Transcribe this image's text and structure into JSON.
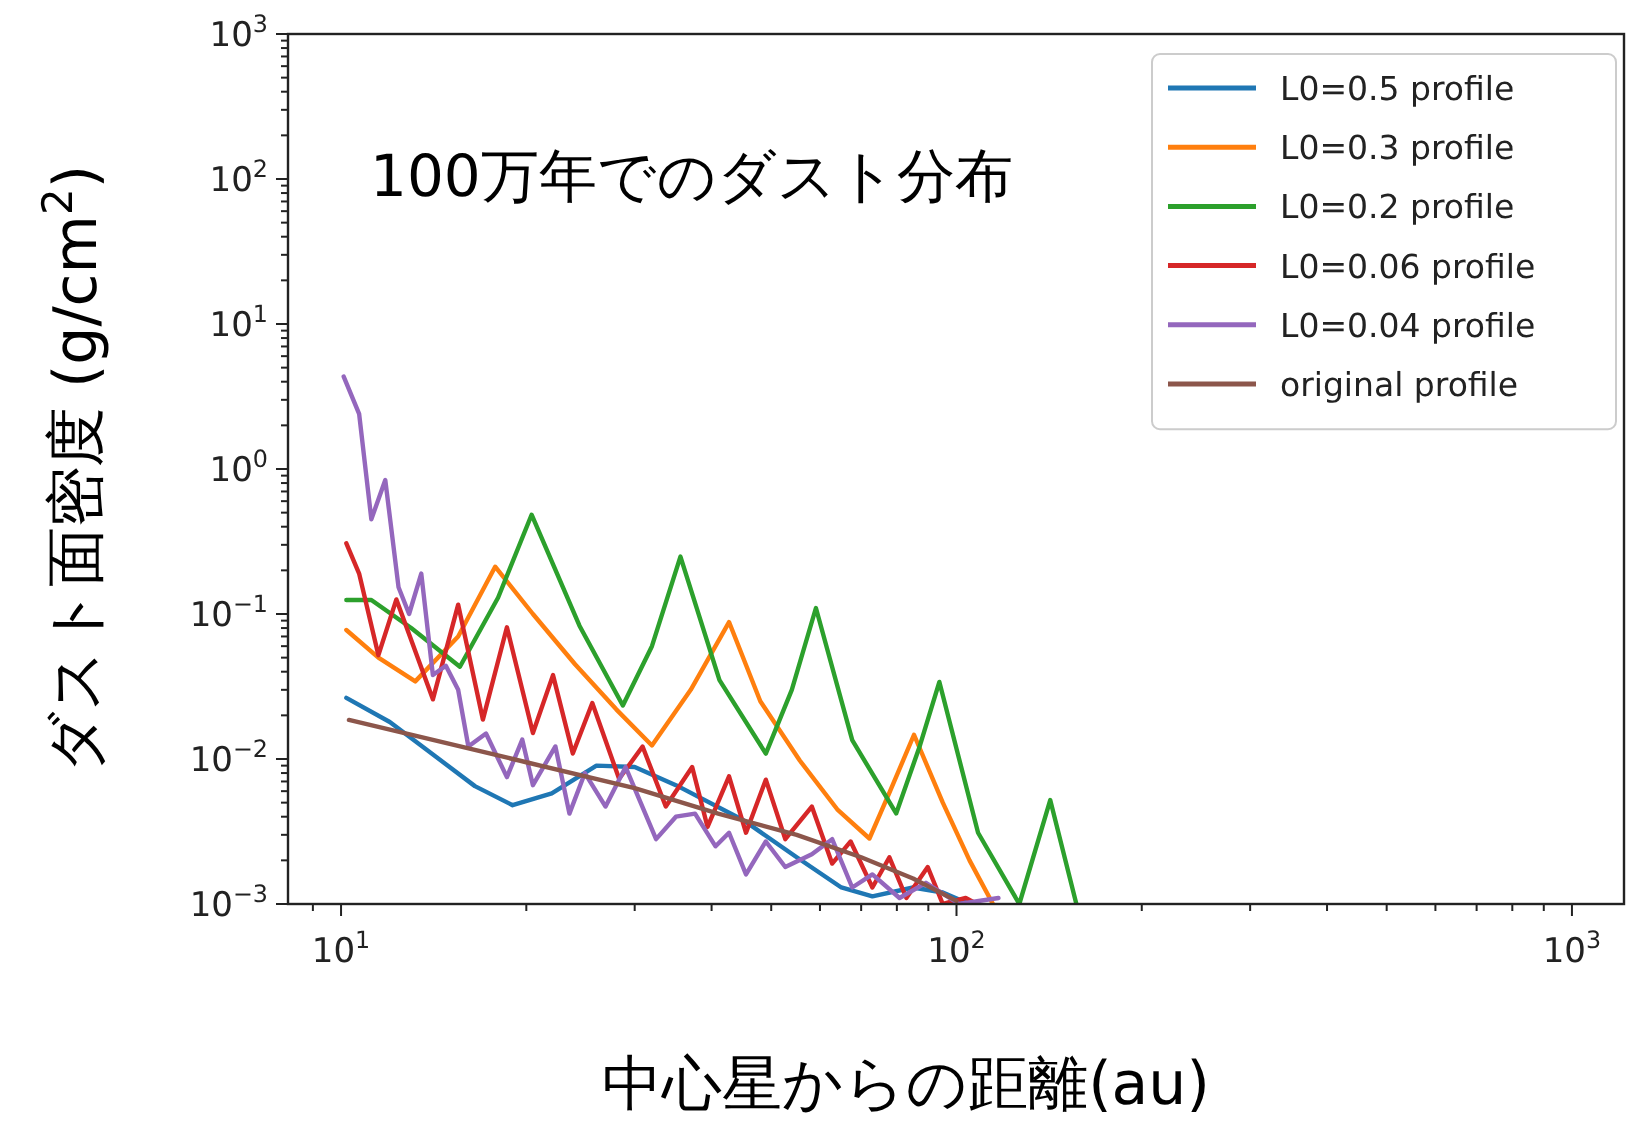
{
  "chart_data": {
    "type": "line",
    "title": "100万年でのダスト分布",
    "xlabel": "中心星からの距離(au)",
    "ylabel": "ダスト面密度 (g/cm$^{2}$)",
    "log": "xy",
    "legend": "top right",
    "xlim": [
      8.2,
      1215
    ],
    "ylim": [
      0.001,
      1000
    ],
    "xticks": [
      {
        "value": 9,
        "label": null
      },
      {
        "value": 10,
        "label": "10$^{1}$"
      },
      {
        "value": 20,
        "label": null
      },
      {
        "value": 30,
        "label": null
      },
      {
        "value": 40,
        "label": null
      },
      {
        "value": 50,
        "label": null
      },
      {
        "value": 60,
        "label": null
      },
      {
        "value": 70,
        "label": null
      },
      {
        "value": 80,
        "label": null
      },
      {
        "value": 90,
        "label": null
      },
      {
        "value": 100,
        "label": "10$^{2}$"
      },
      {
        "value": 200,
        "label": null
      },
      {
        "value": 300,
        "label": null
      },
      {
        "value": 400,
        "label": null
      },
      {
        "value": 500,
        "label": null
      },
      {
        "value": 600,
        "label": null
      },
      {
        "value": 700,
        "label": null
      },
      {
        "value": 800,
        "label": null
      },
      {
        "value": 900,
        "label": null
      },
      {
        "value": 1000,
        "label": "10$^{3}$"
      }
    ],
    "yticks": [
      {
        "value": 0.001,
        "label": "10$^{−3}$"
      },
      {
        "value": 0.002,
        "label": null
      },
      {
        "value": 0.003,
        "label": null
      },
      {
        "value": 0.004,
        "label": null
      },
      {
        "value": 0.005,
        "label": null
      },
      {
        "value": 0.006,
        "label": null
      },
      {
        "value": 0.007,
        "label": null
      },
      {
        "value": 0.008,
        "label": null
      },
      {
        "value": 0.009,
        "label": null
      },
      {
        "value": 0.01,
        "label": "10$^{−2}$"
      },
      {
        "value": 0.02,
        "label": null
      },
      {
        "value": 0.03,
        "label": null
      },
      {
        "value": 0.04,
        "label": null
      },
      {
        "value": 0.05,
        "label": null
      },
      {
        "value": 0.06,
        "label": null
      },
      {
        "value": 0.07,
        "label": null
      },
      {
        "value": 0.08,
        "label": null
      },
      {
        "value": 0.09,
        "label": null
      },
      {
        "value": 0.1,
        "label": "10$^{−1}$"
      },
      {
        "value": 0.2,
        "label": null
      },
      {
        "value": 0.3,
        "label": null
      },
      {
        "value": 0.4,
        "label": null
      },
      {
        "value": 0.5,
        "label": null
      },
      {
        "value": 0.6,
        "label": null
      },
      {
        "value": 0.7,
        "label": null
      },
      {
        "value": 0.8,
        "label": null
      },
      {
        "value": 0.9,
        "label": null
      },
      {
        "value": 1,
        "label": "10$^{0}$"
      },
      {
        "value": 2,
        "label": null
      },
      {
        "value": 3,
        "label": null
      },
      {
        "value": 4,
        "label": null
      },
      {
        "value": 5,
        "label": null
      },
      {
        "value": 6,
        "label": null
      },
      {
        "value": 7,
        "label": null
      },
      {
        "value": 8,
        "label": null
      },
      {
        "value": 9,
        "label": null
      },
      {
        "value": 10,
        "label": "10$^{1}$"
      },
      {
        "value": 20,
        "label": null
      },
      {
        "value": 30,
        "label": null
      },
      {
        "value": 40,
        "label": null
      },
      {
        "value": 50,
        "label": null
      },
      {
        "value": 60,
        "label": null
      },
      {
        "value": 70,
        "label": null
      },
      {
        "value": 80,
        "label": null
      },
      {
        "value": 90,
        "label": null
      },
      {
        "value": 100,
        "label": "10$^{2}$"
      },
      {
        "value": 200,
        "label": null
      },
      {
        "value": 300,
        "label": null
      },
      {
        "value": 400,
        "label": null
      },
      {
        "value": 500,
        "label": null
      },
      {
        "value": 600,
        "label": null
      },
      {
        "value": 700,
        "label": null
      },
      {
        "value": 800,
        "label": null
      },
      {
        "value": 900,
        "label": null
      },
      {
        "value": 1000,
        "label": "10$^{3}$"
      }
    ],
    "series": [
      {
        "name": "L0=0.5 profile",
        "color": "#1f77b4",
        "x": [
          10.2,
          12,
          14,
          16.5,
          19,
          22,
          26,
          30,
          35,
          45,
          55,
          65,
          73,
          85,
          95,
          105
        ],
        "values": [
          0.0264,
          0.018,
          0.011,
          0.0065,
          0.0048,
          0.0058,
          0.009,
          0.0088,
          0.0066,
          0.0038,
          0.0021,
          0.0013,
          0.00113,
          0.0013,
          0.0012,
          0.001
        ]
      },
      {
        "name": "L0=0.3 profile",
        "color": "#ff7f0e",
        "x": [
          10.2,
          11.5,
          13.2,
          15.5,
          17.8,
          20.5,
          24,
          28,
          32,
          37,
          42.7,
          48,
          55.6,
          64,
          72.2,
          78,
          85.3,
          95,
          105,
          114.6
        ],
        "values": [
          0.0776,
          0.05,
          0.0343,
          0.07,
          0.212,
          0.1,
          0.045,
          0.022,
          0.0124,
          0.03,
          0.088,
          0.025,
          0.0098,
          0.0045,
          0.00283,
          0.006,
          0.0147,
          0.005,
          0.002,
          0.001
        ]
      },
      {
        "name": "L0=0.2 profile",
        "color": "#2ca02c",
        "x": [
          10.2,
          11.2,
          13,
          15.6,
          18,
          20.4,
          24.4,
          28.7,
          32,
          35.6,
          41.2,
          49,
          54,
          59.1,
          67.7,
          79.8,
          87,
          93.8,
          108.4,
          126.5,
          142,
          156.6
        ],
        "values": [
          0.125,
          0.125,
          0.08,
          0.0433,
          0.13,
          0.484,
          0.083,
          0.0234,
          0.06,
          0.249,
          0.035,
          0.0109,
          0.03,
          0.11,
          0.0135,
          0.00421,
          0.012,
          0.034,
          0.0031,
          0.001,
          0.00521,
          0.001
        ]
      },
      {
        "name": "L0=0.06 profile",
        "color": "#d62728",
        "x": [
          10.2,
          10.7,
          11.5,
          12.3,
          14.1,
          15.5,
          17,
          18.6,
          20.5,
          22.1,
          23.8,
          25.6,
          28.3,
          30.9,
          33.7,
          37.2,
          39.4,
          42.7,
          45.5,
          49,
          52.7,
          58.2,
          62.8,
          67.3,
          73,
          77.8,
          82.9,
          89.8,
          95,
          103.5,
          108
        ],
        "values": [
          0.307,
          0.19,
          0.052,
          0.126,
          0.0258,
          0.116,
          0.0187,
          0.081,
          0.0151,
          0.0379,
          0.0109,
          0.0243,
          0.0073,
          0.0122,
          0.0047,
          0.0088,
          0.0034,
          0.0076,
          0.0031,
          0.0072,
          0.0028,
          0.0047,
          0.0019,
          0.0027,
          0.0013,
          0.0021,
          0.0011,
          0.0018,
          0.001,
          0.0011,
          0.001
        ]
      },
      {
        "name": "L0=0.04 profile",
        "color": "#9467bd",
        "x": [
          10.1,
          10.7,
          11.2,
          11.8,
          12.4,
          12.9,
          13.5,
          14.1,
          14.8,
          15.5,
          16.1,
          17.2,
          18.6,
          19.7,
          20.5,
          22.3,
          23.5,
          24.9,
          26.9,
          29,
          32.5,
          35,
          37.6,
          40.6,
          42.7,
          45.5,
          49,
          52.7,
          58.2,
          62.8,
          67.7,
          73,
          80.8,
          89.2,
          101,
          117
        ],
        "values": [
          4.34,
          2.4,
          0.45,
          0.84,
          0.153,
          0.1,
          0.19,
          0.038,
          0.044,
          0.03,
          0.0122,
          0.015,
          0.0075,
          0.0136,
          0.0066,
          0.0122,
          0.0042,
          0.008,
          0.0047,
          0.0088,
          0.0028,
          0.004,
          0.0042,
          0.0025,
          0.0031,
          0.0016,
          0.0027,
          0.0018,
          0.0022,
          0.0028,
          0.0013,
          0.0016,
          0.0011,
          0.0014,
          0.001,
          0.0011
        ]
      },
      {
        "name": "original profile",
        "color": "#8c564b",
        "x": [
          10.3,
          20,
          30,
          41,
          55,
          70,
          85,
          100
        ],
        "values": [
          0.0186,
          0.0095,
          0.0063,
          0.0042,
          0.003,
          0.0021,
          0.0015,
          0.00105
        ]
      }
    ]
  }
}
